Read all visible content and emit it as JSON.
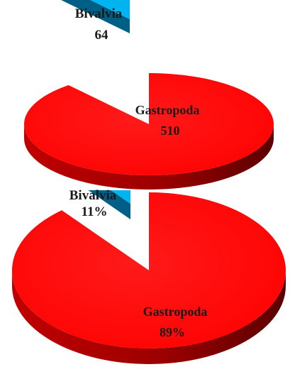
{
  "colors": {
    "gastropoda": "#ff0000",
    "gastropoda_side": "#9b0000",
    "bivalvia": "#00b4f0",
    "bivalvia_side": "#005f86"
  },
  "chart_data": [
    {
      "type": "pie",
      "categories": [
        "Bivalvia",
        "Gastropoda"
      ],
      "values": [
        64,
        510
      ],
      "value_labels": [
        "64",
        "510"
      ],
      "style": "3d-exploded",
      "legend": "none"
    },
    {
      "type": "pie",
      "categories": [
        "Bivalvia",
        "Gastropoda"
      ],
      "values": [
        11,
        89
      ],
      "value_labels": [
        "11%",
        "89%"
      ],
      "style": "3d-exploded",
      "legend": "none"
    }
  ]
}
